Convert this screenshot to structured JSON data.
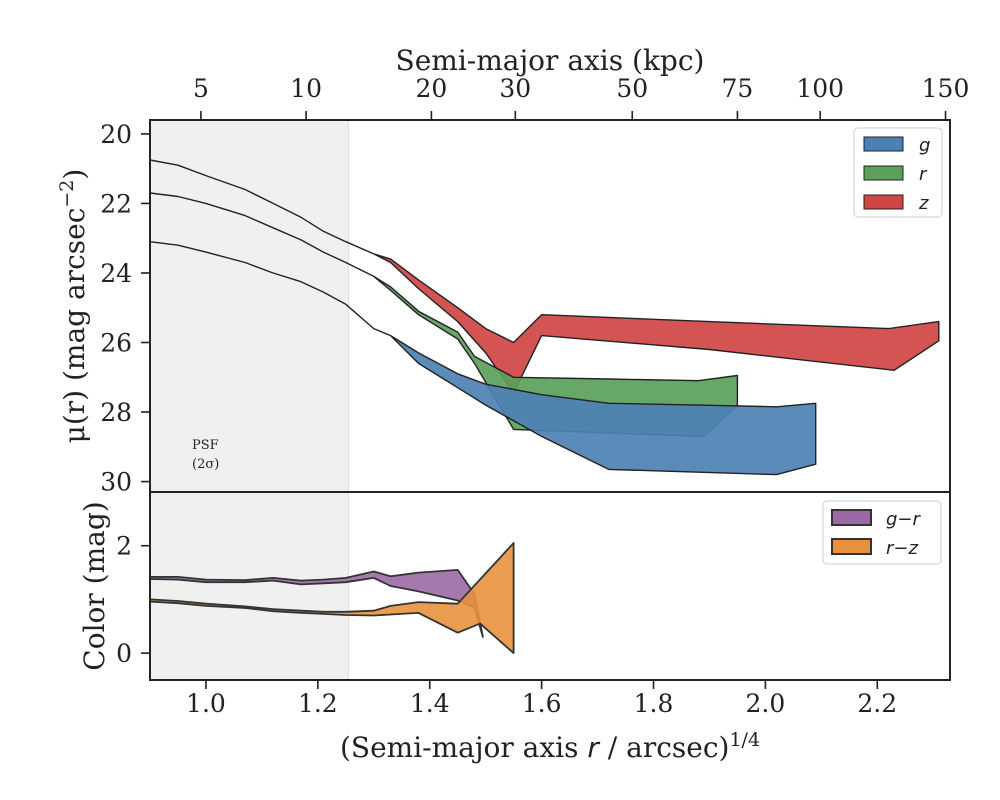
{
  "chart_data": [
    {
      "type": "area",
      "panel": "profile",
      "ylabel_main": "μ(r) (mag arcsec",
      "ylabel_sup": "−2",
      "ylabel_close": ")",
      "top_xlabel": "Semi-major axis (kpc)",
      "top_ticks": [
        {
          "label": "5",
          "x": 0.991
        },
        {
          "label": "10",
          "x": 1.179
        },
        {
          "label": "20",
          "x": 1.403
        },
        {
          "label": "30",
          "x": 1.553
        },
        {
          "label": "50",
          "x": 1.762
        },
        {
          "label": "75",
          "x": 1.95
        },
        {
          "label": "100",
          "x": 2.098
        },
        {
          "label": "150",
          "x": 2.322
        }
      ],
      "xlim": [
        0.9,
        2.33
      ],
      "ylim": [
        30.3,
        19.6
      ],
      "y_inverted": true,
      "yticks": [
        "20",
        "22",
        "24",
        "26",
        "28",
        "30"
      ],
      "psf_shade_xmax": 1.255,
      "psf_label_1": "PSF",
      "psf_label_2": "(2σ)",
      "legend_position": "upper-right",
      "series": [
        {
          "name": "g",
          "color": "#4c81b3",
          "upper": [
            [
              0.9,
              23.1
            ],
            [
              0.95,
              23.2
            ],
            [
              1.0,
              23.4
            ],
            [
              1.07,
              23.7
            ],
            [
              1.12,
              24.0
            ],
            [
              1.17,
              24.25
            ],
            [
              1.21,
              24.55
            ],
            [
              1.25,
              24.9
            ],
            [
              1.3,
              25.6
            ],
            [
              1.33,
              25.8
            ],
            [
              1.38,
              26.3
            ],
            [
              1.45,
              26.9
            ],
            [
              1.5,
              27.2
            ],
            [
              1.6,
              27.5
            ],
            [
              1.72,
              27.75
            ],
            [
              1.88,
              27.8
            ],
            [
              2.02,
              27.85
            ],
            [
              2.09,
              27.75
            ]
          ],
          "lower": [
            [
              0.9,
              23.1
            ],
            [
              0.95,
              23.2
            ],
            [
              1.0,
              23.4
            ],
            [
              1.07,
              23.7
            ],
            [
              1.12,
              24.0
            ],
            [
              1.17,
              24.25
            ],
            [
              1.21,
              24.55
            ],
            [
              1.25,
              24.9
            ],
            [
              1.3,
              25.6
            ],
            [
              1.33,
              25.8
            ],
            [
              1.38,
              26.6
            ],
            [
              1.45,
              27.3
            ],
            [
              1.5,
              27.8
            ],
            [
              1.6,
              28.7
            ],
            [
              1.72,
              29.65
            ],
            [
              2.02,
              29.8
            ],
            [
              2.09,
              29.5
            ]
          ]
        },
        {
          "name": "r",
          "color": "#5aa05b",
          "upper": [
            [
              0.9,
              21.7
            ],
            [
              0.95,
              21.8
            ],
            [
              1.0,
              22.0
            ],
            [
              1.07,
              22.35
            ],
            [
              1.12,
              22.7
            ],
            [
              1.17,
              23.05
            ],
            [
              1.21,
              23.4
            ],
            [
              1.25,
              23.7
            ],
            [
              1.3,
              24.1
            ],
            [
              1.33,
              24.4
            ],
            [
              1.38,
              25.1
            ],
            [
              1.45,
              25.7
            ],
            [
              1.48,
              26.4
            ],
            [
              1.55,
              27.0
            ],
            [
              1.72,
              27.05
            ],
            [
              1.88,
              27.1
            ],
            [
              1.95,
              26.95
            ]
          ],
          "lower": [
            [
              0.9,
              21.7
            ],
            [
              0.95,
              21.8
            ],
            [
              1.0,
              22.0
            ],
            [
              1.07,
              22.35
            ],
            [
              1.12,
              22.7
            ],
            [
              1.17,
              23.05
            ],
            [
              1.21,
              23.4
            ],
            [
              1.25,
              23.7
            ],
            [
              1.3,
              24.1
            ],
            [
              1.33,
              24.5
            ],
            [
              1.38,
              25.2
            ],
            [
              1.45,
              25.9
            ],
            [
              1.48,
              26.6
            ],
            [
              1.55,
              28.5
            ],
            [
              1.72,
              28.6
            ],
            [
              1.89,
              28.7
            ],
            [
              1.95,
              27.8
            ]
          ]
        },
        {
          "name": "z",
          "color": "#d04545",
          "upper": [
            [
              0.9,
              20.75
            ],
            [
              0.95,
              20.9
            ],
            [
              1.0,
              21.2
            ],
            [
              1.07,
              21.6
            ],
            [
              1.12,
              22.0
            ],
            [
              1.17,
              22.4
            ],
            [
              1.21,
              22.8
            ],
            [
              1.25,
              23.1
            ],
            [
              1.3,
              23.45
            ],
            [
              1.33,
              23.6
            ],
            [
              1.38,
              24.2
            ],
            [
              1.45,
              25.0
            ],
            [
              1.5,
              25.6
            ],
            [
              1.55,
              26.0
            ],
            [
              1.6,
              25.2
            ],
            [
              1.9,
              25.4
            ],
            [
              2.22,
              25.6
            ],
            [
              2.31,
              25.4
            ]
          ],
          "lower": [
            [
              0.9,
              20.75
            ],
            [
              0.95,
              20.9
            ],
            [
              1.0,
              21.2
            ],
            [
              1.07,
              21.6
            ],
            [
              1.12,
              22.0
            ],
            [
              1.17,
              22.4
            ],
            [
              1.21,
              22.8
            ],
            [
              1.25,
              23.1
            ],
            [
              1.3,
              23.45
            ],
            [
              1.33,
              23.7
            ],
            [
              1.38,
              24.45
            ],
            [
              1.45,
              25.4
            ],
            [
              1.5,
              26.3
            ],
            [
              1.55,
              27.45
            ],
            [
              1.6,
              25.8
            ],
            [
              1.9,
              26.2
            ],
            [
              2.23,
              26.8
            ],
            [
              2.31,
              25.95
            ]
          ]
        }
      ]
    },
    {
      "type": "area",
      "panel": "color",
      "xlabel_main": "(Semi-major axis ",
      "xlabel_r": "r",
      "xlabel_tail": " / arcsec)",
      "xlabel_sup": "1/4",
      "ylabel": "Color (mag)",
      "xlim": [
        0.9,
        2.33
      ],
      "ylim": [
        -0.5,
        3.0
      ],
      "xticks": [
        "1.0",
        "1.2",
        "1.4",
        "1.6",
        "1.8",
        "2.0",
        "2.2"
      ],
      "yticks": [
        "0",
        "2"
      ],
      "legend_position": "upper-right",
      "series": [
        {
          "name": "g−r",
          "color": "#9b6aa4",
          "upper": [
            [
              0.9,
              1.42
            ],
            [
              0.95,
              1.42
            ],
            [
              1.0,
              1.37
            ],
            [
              1.07,
              1.36
            ],
            [
              1.12,
              1.4
            ],
            [
              1.17,
              1.35
            ],
            [
              1.21,
              1.37
            ],
            [
              1.25,
              1.4
            ],
            [
              1.3,
              1.52
            ],
            [
              1.33,
              1.43
            ],
            [
              1.38,
              1.5
            ],
            [
              1.45,
              1.55
            ],
            [
              1.48,
              1.1
            ],
            [
              1.495,
              0.3
            ]
          ],
          "lower": [
            [
              0.9,
              1.38
            ],
            [
              0.95,
              1.37
            ],
            [
              1.0,
              1.32
            ],
            [
              1.07,
              1.32
            ],
            [
              1.12,
              1.35
            ],
            [
              1.17,
              1.28
            ],
            [
              1.21,
              1.3
            ],
            [
              1.25,
              1.32
            ],
            [
              1.3,
              1.4
            ],
            [
              1.33,
              1.25
            ],
            [
              1.38,
              1.15
            ],
            [
              1.45,
              0.98
            ],
            [
              1.48,
              0.85
            ],
            [
              1.495,
              0.3
            ]
          ]
        },
        {
          "name": "r−z",
          "color": "#e8913d",
          "upper": [
            [
              0.9,
              1.0
            ],
            [
              0.95,
              0.97
            ],
            [
              1.0,
              0.92
            ],
            [
              1.07,
              0.87
            ],
            [
              1.12,
              0.82
            ],
            [
              1.17,
              0.79
            ],
            [
              1.21,
              0.77
            ],
            [
              1.25,
              0.77
            ],
            [
              1.3,
              0.79
            ],
            [
              1.33,
              0.88
            ],
            [
              1.38,
              0.95
            ],
            [
              1.45,
              0.92
            ],
            [
              1.55,
              2.05
            ]
          ],
          "lower": [
            [
              0.9,
              0.96
            ],
            [
              0.95,
              0.93
            ],
            [
              1.0,
              0.88
            ],
            [
              1.07,
              0.84
            ],
            [
              1.12,
              0.78
            ],
            [
              1.17,
              0.75
            ],
            [
              1.21,
              0.73
            ],
            [
              1.25,
              0.71
            ],
            [
              1.3,
              0.7
            ],
            [
              1.33,
              0.72
            ],
            [
              1.38,
              0.75
            ],
            [
              1.45,
              0.38
            ],
            [
              1.49,
              0.55
            ],
            [
              1.55,
              0.0
            ]
          ]
        }
      ]
    }
  ]
}
